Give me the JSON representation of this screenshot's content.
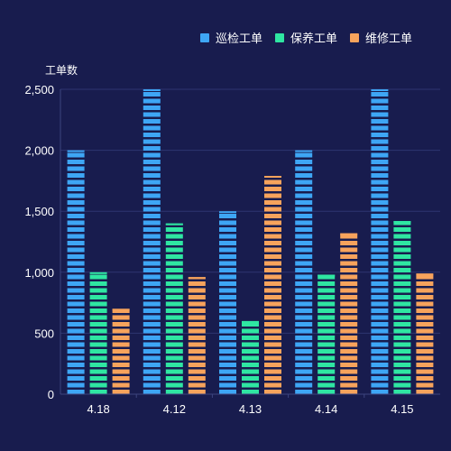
{
  "chart_data": {
    "type": "bar",
    "title": "",
    "xlabel": "",
    "ylabel": "工单数",
    "categories": [
      "4.18",
      "4.12",
      "4.13",
      "4.14",
      "4.15"
    ],
    "ylim": [
      0,
      2500
    ],
    "yticks": [
      0,
      500,
      1000,
      1500,
      2000,
      2500
    ],
    "ytick_labels": [
      "0",
      "500",
      "1,000",
      "1,500",
      "2,000",
      "2,500"
    ],
    "grid": true,
    "legend_position": "top-right",
    "series": [
      {
        "name": "巡检工单",
        "color": "#3ea6f5",
        "values": [
          2000,
          2500,
          1500,
          2000,
          2500
        ]
      },
      {
        "name": "保养工单",
        "color": "#2fe6a2",
        "values": [
          1000,
          1400,
          600,
          980,
          1420
        ]
      },
      {
        "name": "维修工单",
        "color": "#f7a35c",
        "values": [
          700,
          960,
          1790,
          1320,
          990
        ]
      }
    ]
  },
  "colors": {
    "background": "#181c4e",
    "grid": "#2e3570",
    "axis": "#3d447f",
    "text": "#ffffff"
  }
}
